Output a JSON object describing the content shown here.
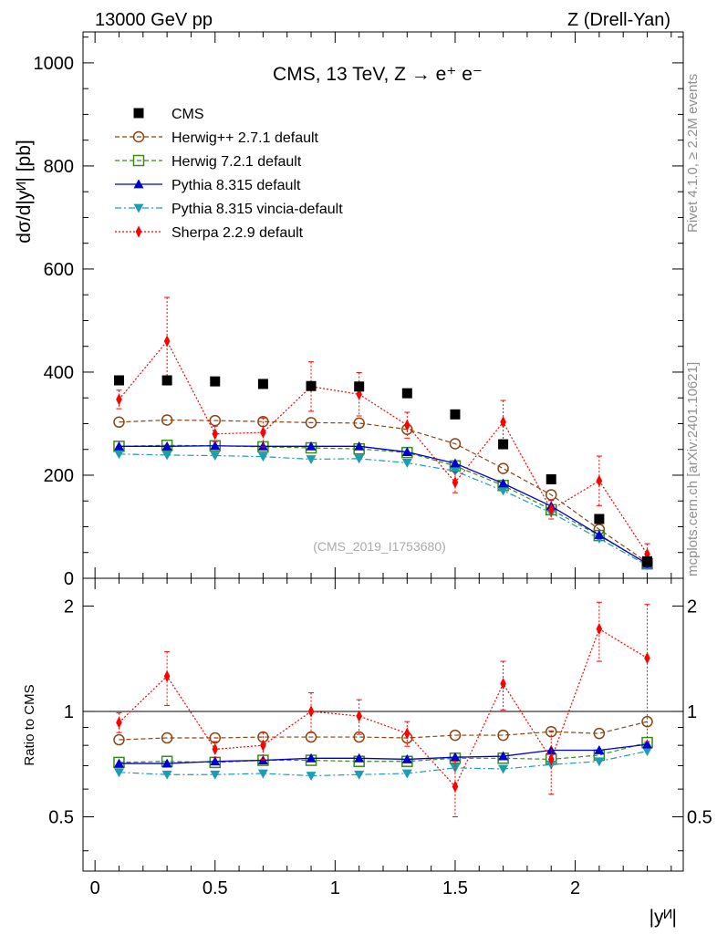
{
  "header": {
    "left": "13000 GeV pp",
    "right": "Z (Drell-Yan)"
  },
  "side": {
    "rivet": "Rivet 4.1.0, ≥ 2.2M events",
    "mcplots": "mcplots.cern.ch [arXiv:2401.10621]"
  },
  "chart_data": {
    "type": "scatter",
    "title": "CMS, 13 TeV, Z → e⁺ e⁻",
    "watermark": "(CMS_2019_I1753680)",
    "xlabel": "|yᴻ|",
    "ylabel": "dσ/d|yᴻ| [pb]",
    "ratio_ylabel": "Ratio to CMS",
    "xlim": [
      -0.05,
      2.45
    ],
    "ylim": [
      0,
      1060
    ],
    "ratio_ylim": [
      0.35,
      2.4
    ],
    "xticks": [
      0,
      0.5,
      1,
      1.5,
      2
    ],
    "xtick_labels": [
      "0",
      "0.5",
      "1",
      "1.5",
      "2"
    ],
    "yticks": [
      0,
      200,
      400,
      600,
      800,
      1000
    ],
    "ytick_labels": [
      "0",
      "200",
      "400",
      "600",
      "800",
      "1000"
    ],
    "ratio_yticks": [
      0.5,
      1,
      2
    ],
    "ratio_ytick_labels": [
      "0.5",
      "1",
      "2"
    ],
    "x": [
      0.1,
      0.3,
      0.5,
      0.7,
      0.9,
      1.1,
      1.3,
      1.5,
      1.7,
      1.9,
      2.1,
      2.3
    ],
    "series": [
      {
        "name": "CMS",
        "color": "#000000",
        "marker": "square-filled",
        "line": "none",
        "values": [
          384,
          384,
          382,
          377,
          373,
          372,
          359,
          318,
          260,
          192,
          115,
          33
        ]
      },
      {
        "name": "Herwig++ 2.7.1 default",
        "color": "#8b4513",
        "marker": "circle-open",
        "line": "dashed",
        "values": [
          303,
          307,
          306,
          304,
          302,
          301,
          289,
          261,
          213,
          162,
          95,
          31
        ],
        "ratio": [
          0.83,
          0.84,
          0.84,
          0.845,
          0.845,
          0.845,
          0.84,
          0.855,
          0.855,
          0.875,
          0.865,
          0.935
        ]
      },
      {
        "name": "Herwig 7.2.1 default",
        "color": "#3a8a1a",
        "marker": "square-open",
        "line": "dashed",
        "values": [
          256,
          258,
          257,
          255,
          253,
          251,
          244,
          218,
          180,
          133,
          83,
          28
        ],
        "ratio": [
          0.715,
          0.72,
          0.715,
          0.725,
          0.725,
          0.72,
          0.72,
          0.735,
          0.735,
          0.73,
          0.75,
          0.815
        ]
      },
      {
        "name": "Pythia 8.315 default",
        "color": "#0000cc",
        "marker": "triangle-up-filled",
        "line": "solid",
        "values": [
          256,
          256,
          257,
          256,
          256,
          256,
          245,
          223,
          184,
          140,
          84,
          28
        ],
        "ratio": [
          0.71,
          0.71,
          0.72,
          0.725,
          0.735,
          0.735,
          0.73,
          0.74,
          0.745,
          0.775,
          0.775,
          0.805
        ]
      },
      {
        "name": "Pythia 8.315 vincia-default",
        "color": "#1b9db5",
        "marker": "triangle-down-filled",
        "line": "dashdot",
        "values": [
          241,
          239,
          238,
          236,
          231,
          232,
          224,
          208,
          170,
          127,
          77,
          25
        ],
        "ratio": [
          0.67,
          0.66,
          0.66,
          0.665,
          0.655,
          0.66,
          0.665,
          0.69,
          0.685,
          0.705,
          0.72,
          0.77
        ]
      },
      {
        "name": "Sherpa 2.2.9 default",
        "color": "#ff0000",
        "marker": "diamond-filled",
        "line": "dotted",
        "values": [
          347,
          460,
          280,
          283,
          372,
          357,
          297,
          186,
          303,
          133,
          189,
          47
        ],
        "err": [
          18,
          85,
          15,
          28,
          48,
          42,
          25,
          20,
          42,
          18,
          48,
          20
        ],
        "ratio": [
          0.93,
          1.26,
          0.78,
          0.8,
          1.0,
          0.97,
          0.865,
          0.61,
          1.2,
          0.73,
          1.72,
          1.42
        ],
        "ratio_err": [
          0.06,
          0.22,
          0.04,
          0.07,
          0.13,
          0.11,
          0.07,
          0.11,
          0.19,
          0.15,
          0.33,
          0.6
        ]
      }
    ]
  }
}
